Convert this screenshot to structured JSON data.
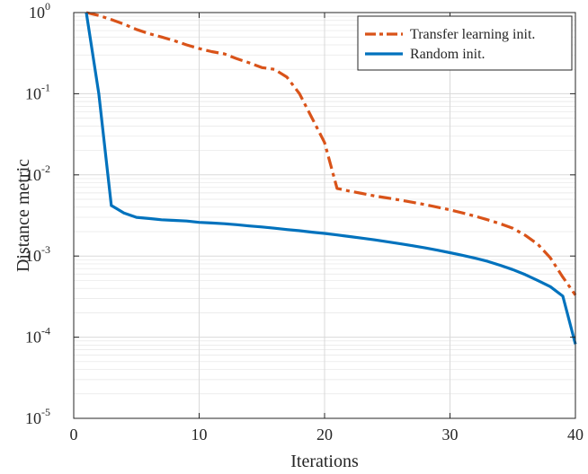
{
  "chart_data": {
    "type": "line",
    "xlabel": "Iterations",
    "ylabel": "Distance metric",
    "xlim": [
      0,
      40
    ],
    "ylim": [
      1e-05,
      1
    ],
    "yscale": "log",
    "grid": true,
    "minor_grid": true,
    "legend_position": "top-right",
    "x_ticks": [
      "0",
      "10",
      "20",
      "30",
      "40"
    ],
    "y_ticks": [
      {
        "base": "10",
        "exp": "0"
      },
      {
        "base": "10",
        "exp": "-1"
      },
      {
        "base": "10",
        "exp": "-2"
      },
      {
        "base": "10",
        "exp": "-3"
      },
      {
        "base": "10",
        "exp": "-4"
      },
      {
        "base": "10",
        "exp": "-5"
      }
    ],
    "series": [
      {
        "name": "Transfer learning init.",
        "color": "#d95319",
        "dash": "dash-dot",
        "x": [
          1,
          2,
          3,
          4,
          5,
          6,
          7,
          8,
          9,
          10,
          11,
          12,
          13,
          14,
          15,
          16,
          17,
          18,
          19,
          20,
          21,
          22,
          23,
          24,
          25,
          26,
          27,
          28,
          29,
          30,
          31,
          32,
          33,
          34,
          35,
          36,
          37,
          38,
          39,
          40
        ],
        "y": [
          1.0,
          0.92,
          0.82,
          0.72,
          0.62,
          0.55,
          0.5,
          0.45,
          0.4,
          0.36,
          0.33,
          0.31,
          0.27,
          0.24,
          0.21,
          0.2,
          0.16,
          0.1,
          0.05,
          0.025,
          0.0068,
          0.0063,
          0.0059,
          0.0055,
          0.0052,
          0.0049,
          0.0046,
          0.0043,
          0.004,
          0.0037,
          0.0034,
          0.0031,
          0.0028,
          0.0025,
          0.0022,
          0.0018,
          0.0014,
          0.00095,
          0.00055,
          0.00033
        ]
      },
      {
        "name": "Random init.",
        "color": "#0072bd",
        "dash": "solid",
        "x": [
          1,
          2,
          3,
          4,
          5,
          6,
          7,
          8,
          9,
          10,
          11,
          12,
          13,
          14,
          15,
          16,
          17,
          18,
          19,
          20,
          21,
          22,
          23,
          24,
          25,
          26,
          27,
          28,
          29,
          30,
          31,
          32,
          33,
          34,
          35,
          36,
          37,
          38,
          39,
          40
        ],
        "y": [
          1.0,
          0.1,
          0.0042,
          0.0034,
          0.003,
          0.0029,
          0.0028,
          0.00275,
          0.0027,
          0.0026,
          0.00255,
          0.0025,
          0.00243,
          0.00235,
          0.00228,
          0.0022,
          0.00212,
          0.00205,
          0.00197,
          0.0019,
          0.00182,
          0.00174,
          0.00166,
          0.00158,
          0.0015,
          0.00142,
          0.00134,
          0.00126,
          0.00118,
          0.0011,
          0.00102,
          0.00094,
          0.00086,
          0.00077,
          0.00068,
          0.00059,
          0.0005,
          0.00042,
          0.00032,
          8.2e-05
        ]
      }
    ]
  }
}
